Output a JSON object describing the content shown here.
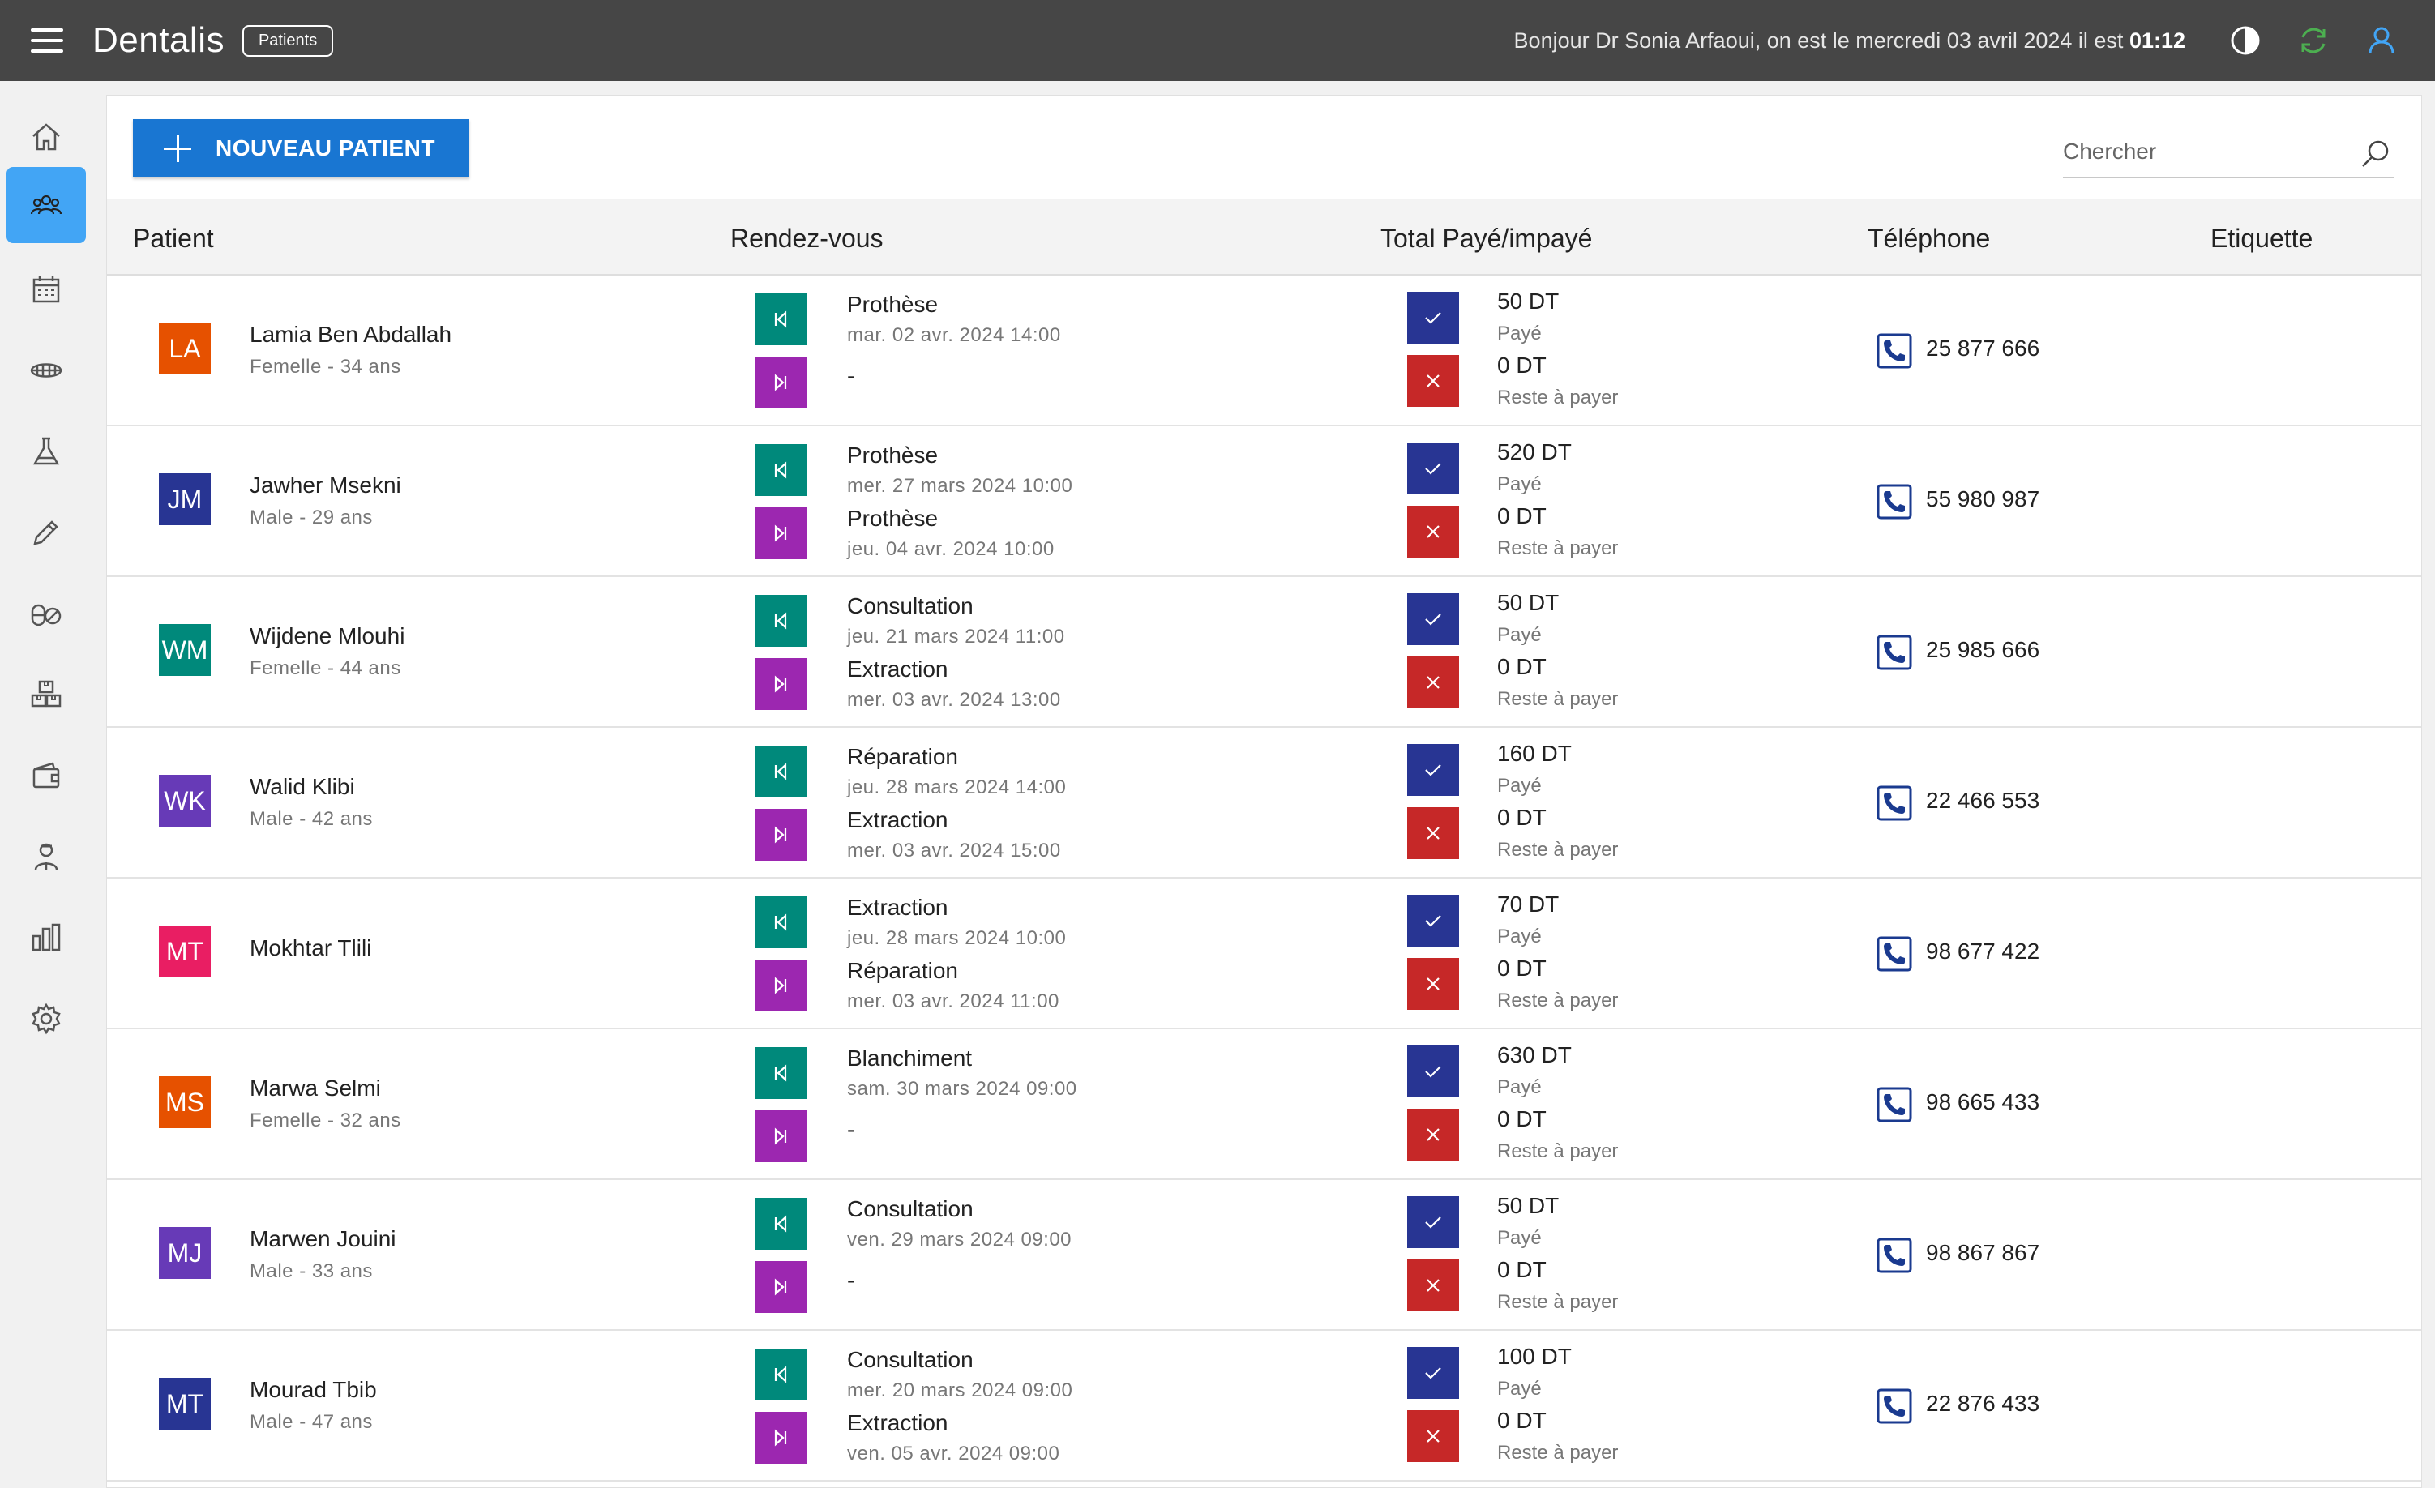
{
  "header": {
    "app_title": "Dentalis",
    "page_chip": "Patients",
    "greeting_prefix": "Bonjour Dr Sonia Arfaoui, on est le mercredi 03 avril 2024 il est ",
    "time": "01:12"
  },
  "sidebar": {
    "items": [
      {
        "name": "home-icon"
      },
      {
        "name": "patients-icon",
        "active": true
      },
      {
        "name": "calendar-icon"
      },
      {
        "name": "teeth-icon"
      },
      {
        "name": "flask-icon"
      },
      {
        "name": "pencil-icon"
      },
      {
        "name": "pills-icon"
      },
      {
        "name": "boxes-icon"
      },
      {
        "name": "wallet-icon"
      },
      {
        "name": "staff-icon"
      },
      {
        "name": "stats-icon"
      },
      {
        "name": "settings-icon"
      }
    ]
  },
  "toolbar": {
    "new_patient_label": "NOUVEAU PATIENT",
    "search_placeholder": "Chercher"
  },
  "table": {
    "columns": [
      "Patient",
      "Rendez-vous",
      "Total Payé/impayé",
      "Téléphone",
      "Etiquette"
    ],
    "paid_label": "Payé",
    "unpaid_label": "Reste à payer",
    "rows": [
      {
        "initials": "LA",
        "color": "#e65100",
        "name": "Lamia Ben Abdallah",
        "sub": "Femelle - 34 ans",
        "prev_title": "Prothèse",
        "prev_date": "mar. 02 avr. 2024 14:00",
        "next_title": "-",
        "next_date": "",
        "paid": "50 DT",
        "unpaid": "0 DT",
        "phone": "25 877 666"
      },
      {
        "initials": "JM",
        "color": "#283593",
        "name": "Jawher Msekni",
        "sub": "Male - 29 ans",
        "prev_title": "Prothèse",
        "prev_date": "mer. 27 mars 2024 10:00",
        "next_title": "Prothèse",
        "next_date": "jeu. 04 avr. 2024 10:00",
        "paid": "520 DT",
        "unpaid": "0 DT",
        "phone": "55 980 987"
      },
      {
        "initials": "WM",
        "color": "#00897b",
        "name": "Wijdene Mlouhi",
        "sub": "Femelle - 44 ans",
        "prev_title": "Consultation",
        "prev_date": "jeu. 21 mars 2024 11:00",
        "next_title": "Extraction",
        "next_date": "mer. 03 avr. 2024 13:00",
        "paid": "50 DT",
        "unpaid": "0 DT",
        "phone": "25 985 666"
      },
      {
        "initials": "WK",
        "color": "#673ab7",
        "name": "Walid Klibi",
        "sub": "Male - 42 ans",
        "prev_title": "Réparation",
        "prev_date": "jeu. 28 mars 2024 14:00",
        "next_title": "Extraction",
        "next_date": "mer. 03 avr. 2024 15:00",
        "paid": "160 DT",
        "unpaid": "0 DT",
        "phone": "22 466 553"
      },
      {
        "initials": "MT",
        "color": "#e91e63",
        "name": "Mokhtar Tlili",
        "sub": "",
        "prev_title": "Extraction",
        "prev_date": "jeu. 28 mars 2024 10:00",
        "next_title": "Réparation",
        "next_date": "mer. 03 avr. 2024 11:00",
        "paid": "70 DT",
        "unpaid": "0 DT",
        "phone": "98 677 422"
      },
      {
        "initials": "MS",
        "color": "#e65100",
        "name": "Marwa Selmi",
        "sub": "Femelle - 32 ans",
        "prev_title": "Blanchiment",
        "prev_date": "sam. 30 mars 2024 09:00",
        "next_title": "-",
        "next_date": "",
        "paid": "630 DT",
        "unpaid": "0 DT",
        "phone": "98 665 433"
      },
      {
        "initials": "MJ",
        "color": "#673ab7",
        "name": "Marwen Jouini",
        "sub": "Male - 33 ans",
        "prev_title": "Consultation",
        "prev_date": "ven. 29 mars 2024 09:00",
        "next_title": "-",
        "next_date": "",
        "paid": "50 DT",
        "unpaid": "0 DT",
        "phone": "98 867 867"
      },
      {
        "initials": "MT",
        "color": "#283593",
        "name": "Mourad Tbib",
        "sub": "Male - 47 ans",
        "prev_title": "Consultation",
        "prev_date": "mer. 20 mars 2024 09:00",
        "next_title": "Extraction",
        "next_date": "ven. 05 avr. 2024 09:00",
        "paid": "100 DT",
        "unpaid": "0 DT",
        "phone": "22 876 433"
      }
    ]
  }
}
